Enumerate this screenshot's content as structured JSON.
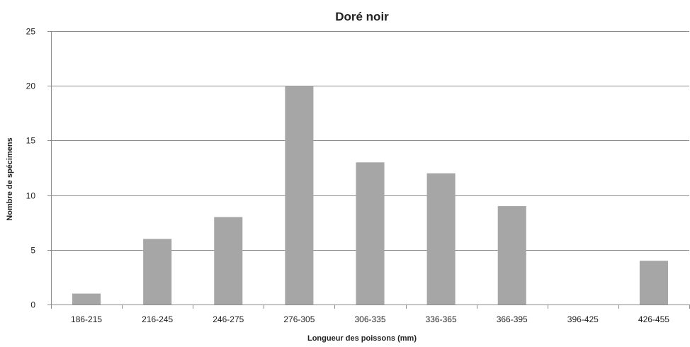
{
  "chart_data": {
    "type": "bar",
    "title": "Doré noir",
    "xlabel": "Longueur des poissons (mm)",
    "ylabel": "Nombre de spécimens",
    "categories": [
      "186-215",
      "216-245",
      "246-275",
      "276-305",
      "306-335",
      "336-365",
      "366-395",
      "396-425",
      "426-455"
    ],
    "values": [
      1,
      6,
      8,
      20,
      13,
      12,
      9,
      0,
      4
    ],
    "ylim": [
      0,
      25
    ],
    "yticks": [
      0,
      5,
      10,
      15,
      20,
      25
    ],
    "grid": true,
    "legend": "none",
    "colors": {
      "bar": "#a6a6a6",
      "grid": "#8c8c8c"
    }
  }
}
